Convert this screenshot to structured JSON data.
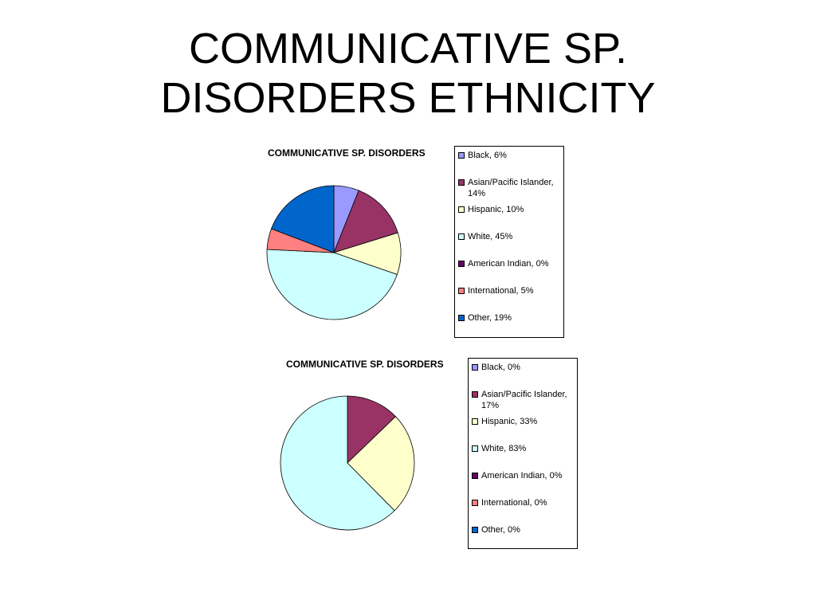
{
  "slide": {
    "title_line1": "COMMUNICATIVE SP.",
    "title_line2": "DISORDERS ETHNICITY"
  },
  "chart_data": [
    {
      "type": "pie",
      "title": "COMMUNICATIVE SP. DISORDERS",
      "legend_position": "right",
      "categories": [
        "Black",
        "Asian/Pacific Islander",
        "Hispanic",
        "White",
        "American Indian",
        "International",
        "Other"
      ],
      "values": [
        6,
        14,
        10,
        45,
        0,
        5,
        19
      ],
      "labels": [
        "Black, 6%",
        "Asian/Pacific Islander, 14%",
        "Hispanic, 10%",
        "White, 45%",
        "American Indian, 0%",
        "International, 5%",
        "Other, 19%"
      ],
      "colors": [
        "#9999ff",
        "#993366",
        "#ffffcc",
        "#ccffff",
        "#660066",
        "#ff8080",
        "#0066cc"
      ]
    },
    {
      "type": "pie",
      "title": "COMMUNICATIVE SP. DISORDERS",
      "legend_position": "right",
      "categories": [
        "Black",
        "Asian/Pacific Islander",
        "Hispanic",
        "White",
        "American Indian",
        "International",
        "Other"
      ],
      "values": [
        0,
        17,
        33,
        83,
        0,
        0,
        0
      ],
      "labels": [
        "Black, 0%",
        "Asian/Pacific Islander, 17%",
        "Hispanic, 33%",
        "White, 83%",
        "American Indian, 0%",
        "International, 0%",
        "Other, 0%"
      ],
      "colors": [
        "#9999ff",
        "#993366",
        "#ffffcc",
        "#ccffff",
        "#660066",
        "#ff8080",
        "#0066cc"
      ]
    }
  ]
}
